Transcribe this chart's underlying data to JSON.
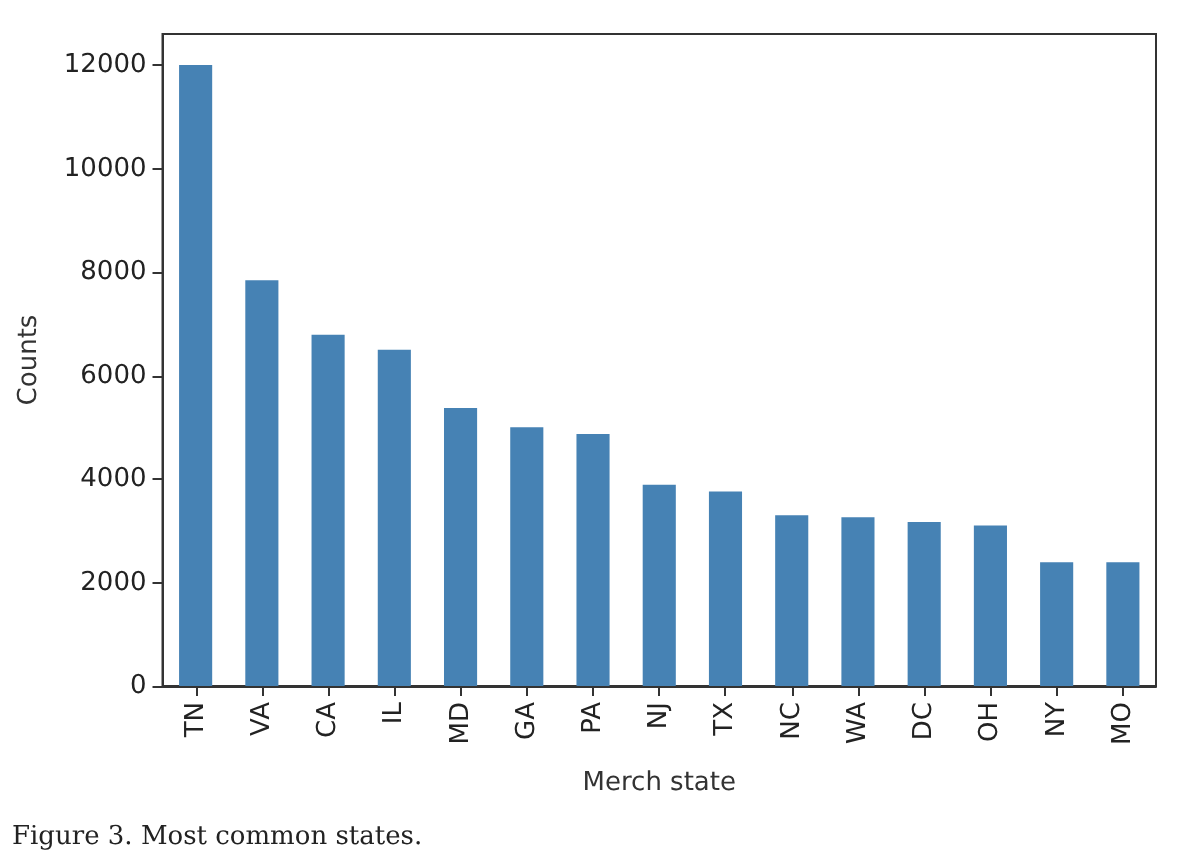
{
  "chart_data": {
    "type": "bar",
    "xlabel": "Merch state",
    "ylabel": "Counts",
    "categories": [
      "TN",
      "VA",
      "CA",
      "IL",
      "MD",
      "GA",
      "PA",
      "NJ",
      "TX",
      "NC",
      "WA",
      "DC",
      "OH",
      "NY",
      "MO"
    ],
    "values": [
      12000,
      7840,
      6790,
      6500,
      5370,
      5000,
      4870,
      3890,
      3760,
      3300,
      3260,
      3170,
      3100,
      2390,
      2390
    ],
    "color": "#4682b4",
    "ylim": [
      0,
      12600
    ],
    "yticks": [
      0,
      2000,
      4000,
      6000,
      8000,
      10000,
      12000
    ],
    "grid": false,
    "annotations": [
      "Figure 3. Most common states."
    ]
  }
}
